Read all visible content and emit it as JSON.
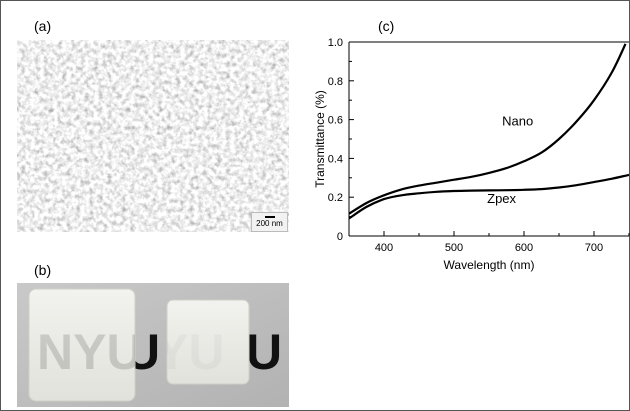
{
  "panels": {
    "a_label": "(a)",
    "b_label": "(b)",
    "c_label": "(c)"
  },
  "sem": {
    "scale_bar_text": "200 nm"
  },
  "photo": {
    "left_sample_text": "NYU",
    "right_sample_text": "NYU"
  },
  "chart_data": {
    "type": "line",
    "xlabel": "Wavelength (nm)",
    "ylabel": "Transmittance (%)",
    "xlim": [
      350,
      750
    ],
    "ylim": [
      0,
      1.0
    ],
    "xticks": [
      400,
      500,
      600,
      700
    ],
    "yticks": [
      0,
      0.2,
      0.4,
      0.6,
      0.8,
      1.0
    ],
    "ytick_labels": [
      "0",
      "0.2",
      "0.4",
      "0.6",
      "0.8",
      "1.0"
    ],
    "grid": false,
    "series": [
      {
        "name": "Nano",
        "x": [
          350,
          375,
          400,
          425,
          450,
          475,
          500,
          525,
          550,
          575,
          600,
          625,
          650,
          675,
          700,
          725,
          745
        ],
        "y": [
          0.115,
          0.17,
          0.21,
          0.24,
          0.26,
          0.275,
          0.29,
          0.305,
          0.325,
          0.35,
          0.385,
          0.43,
          0.5,
          0.59,
          0.7,
          0.84,
          0.99
        ]
      },
      {
        "name": "Zpex",
        "x": [
          350,
          375,
          400,
          425,
          450,
          475,
          500,
          525,
          550,
          575,
          600,
          625,
          650,
          675,
          700,
          725,
          750
        ],
        "y": [
          0.09,
          0.15,
          0.19,
          0.21,
          0.22,
          0.228,
          0.232,
          0.234,
          0.235,
          0.236,
          0.238,
          0.242,
          0.25,
          0.262,
          0.278,
          0.295,
          0.315
        ]
      }
    ]
  }
}
